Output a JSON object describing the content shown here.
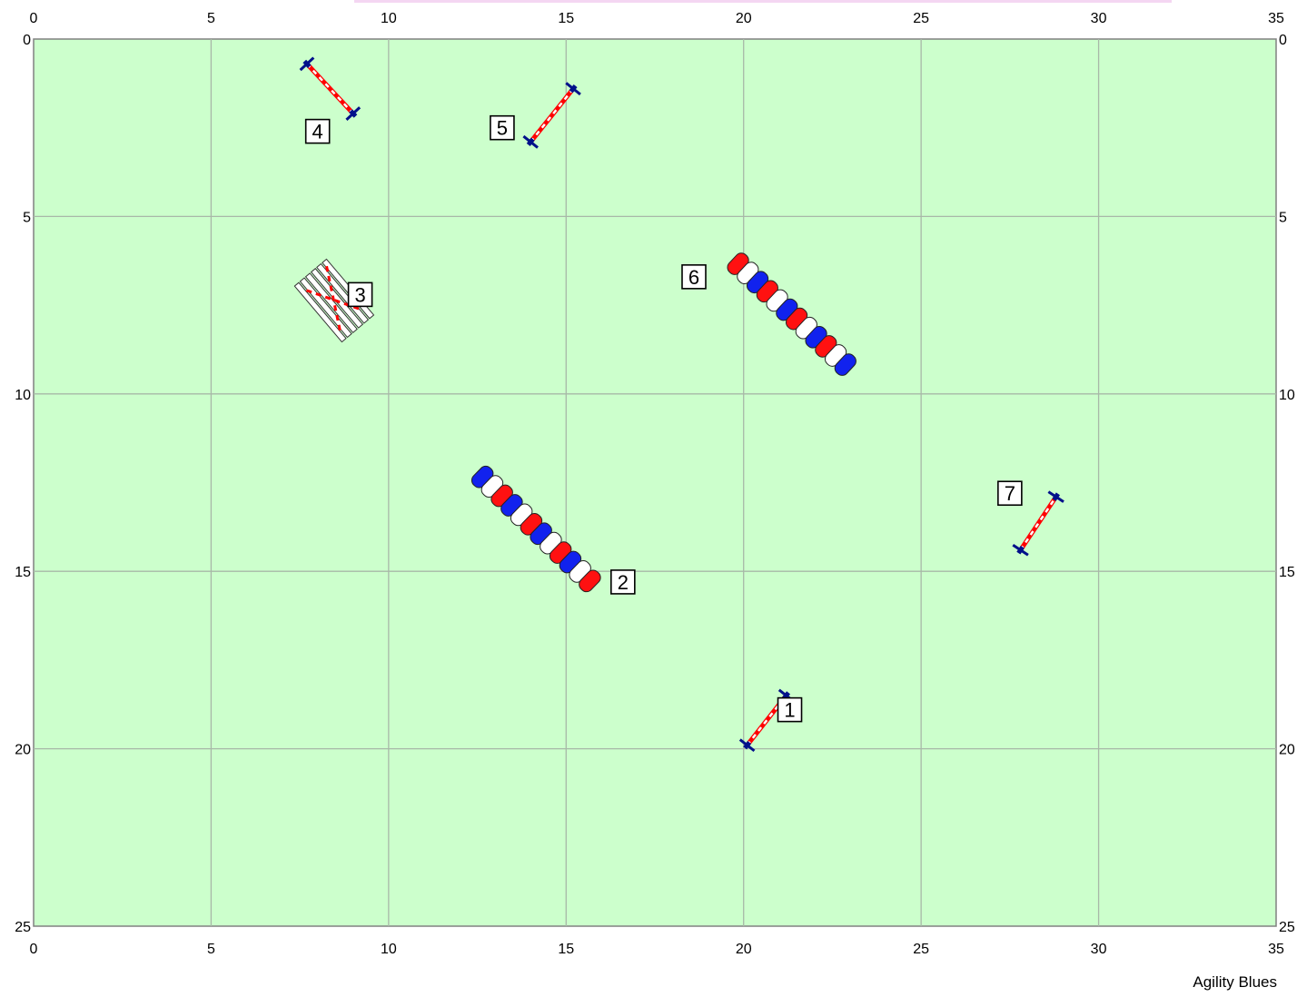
{
  "credit": "Agility Blues",
  "colors": {
    "field": "#ccffcc",
    "grid": "#a8b8a8",
    "border": "#808080",
    "pole_red": "#ff0000",
    "pole_blue": "#0022cc",
    "stand_blue": "#00108a",
    "tunnel_red": "#ff1111",
    "tunnel_blue": "#1122ee",
    "white": "#ffffff"
  },
  "field": {
    "width": 35,
    "height": 25,
    "grid_step": 5,
    "x_ticks": [
      "0",
      "5",
      "10",
      "15",
      "20",
      "25",
      "30",
      "35"
    ],
    "y_ticks": [
      "0",
      "5",
      "10",
      "15",
      "20",
      "25"
    ]
  },
  "obstacles": [
    {
      "number": "1",
      "type": "jump",
      "icon": "hurdle-jump",
      "from": [
        20.1,
        19.9
      ],
      "to": [
        21.2,
        18.5
      ],
      "label_at": [
        21.3,
        18.9
      ]
    },
    {
      "number": "2",
      "type": "tunnel",
      "icon": "pipe-tunnel",
      "from": [
        12.5,
        12.2
      ],
      "to": [
        15.8,
        15.4
      ],
      "segments": [
        "blue",
        "white",
        "red",
        "blue",
        "white",
        "red",
        "blue",
        "white",
        "red",
        "blue",
        "white",
        "red"
      ],
      "label_at": [
        16.6,
        15.3
      ]
    },
    {
      "number": "3",
      "type": "tire-pen",
      "icon": "tire-pen",
      "from": [
        7.9,
        6.7
      ],
      "to": [
        9.0,
        8.0
      ],
      "label_at": [
        9.2,
        7.2
      ]
    },
    {
      "number": "4",
      "type": "jump",
      "icon": "hurdle-jump",
      "from": [
        7.7,
        0.7
      ],
      "to": [
        9.0,
        2.1
      ],
      "label_at": [
        8.0,
        2.6
      ]
    },
    {
      "number": "5",
      "type": "jump",
      "icon": "hurdle-jump",
      "from": [
        14.0,
        2.9
      ],
      "to": [
        15.2,
        1.4
      ],
      "label_at": [
        13.2,
        2.5
      ]
    },
    {
      "number": "6",
      "type": "tunnel",
      "icon": "pipe-tunnel",
      "from": [
        19.7,
        6.2
      ],
      "to": [
        23.0,
        9.3
      ],
      "segments": [
        "red",
        "white",
        "blue",
        "red",
        "white",
        "blue",
        "red",
        "white",
        "blue",
        "red",
        "white",
        "blue"
      ],
      "label_at": [
        18.6,
        6.7
      ]
    },
    {
      "number": "7",
      "type": "jump",
      "icon": "hurdle-jump",
      "from": [
        27.8,
        14.4
      ],
      "to": [
        28.8,
        12.9
      ],
      "label_at": [
        27.5,
        12.8
      ]
    }
  ]
}
